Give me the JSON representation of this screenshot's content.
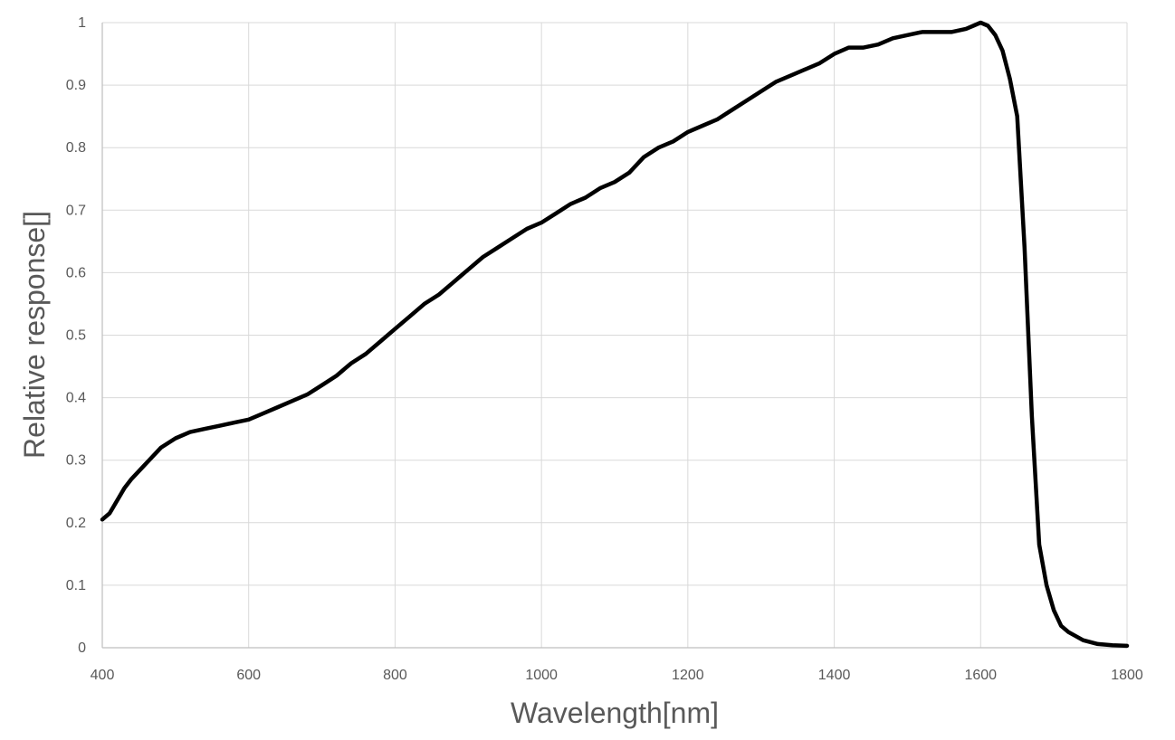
{
  "chart_data": {
    "type": "line",
    "title": "",
    "xlabel": "Wavelength[nm]",
    "ylabel": "Relative response[]",
    "xlim": [
      400,
      1800
    ],
    "ylim": [
      0,
      1
    ],
    "x_ticks": [
      "400",
      "600",
      "800",
      "1000",
      "1200",
      "1400",
      "1600",
      "1800"
    ],
    "y_ticks": [
      "0",
      "0.1",
      "0.2",
      "0.3",
      "0.4",
      "0.5",
      "0.6",
      "0.7",
      "0.8",
      "0.9",
      "1"
    ],
    "grid": true,
    "legend": "none",
    "colors": {
      "series": "#000000",
      "grid": "#d9d9d9",
      "text": "#595959"
    },
    "series": [
      {
        "x": [
          400,
          410,
          420,
          430,
          440,
          460,
          480,
          500,
          520,
          540,
          560,
          580,
          600,
          620,
          640,
          660,
          680,
          700,
          720,
          740,
          760,
          780,
          800,
          820,
          840,
          860,
          880,
          900,
          920,
          940,
          960,
          980,
          1000,
          1020,
          1040,
          1060,
          1080,
          1100,
          1120,
          1140,
          1160,
          1180,
          1200,
          1220,
          1240,
          1260,
          1280,
          1300,
          1320,
          1340,
          1360,
          1380,
          1400,
          1420,
          1440,
          1460,
          1480,
          1500,
          1520,
          1540,
          1560,
          1580,
          1590,
          1600,
          1610,
          1620,
          1630,
          1640,
          1650,
          1660,
          1670,
          1680,
          1690,
          1700,
          1710,
          1720,
          1740,
          1760,
          1780,
          1800
        ],
        "y": [
          0.205,
          0.215,
          0.235,
          0.255,
          0.27,
          0.295,
          0.32,
          0.335,
          0.345,
          0.35,
          0.355,
          0.36,
          0.365,
          0.375,
          0.385,
          0.395,
          0.405,
          0.42,
          0.435,
          0.455,
          0.47,
          0.49,
          0.51,
          0.53,
          0.55,
          0.565,
          0.585,
          0.605,
          0.625,
          0.64,
          0.655,
          0.67,
          0.68,
          0.695,
          0.71,
          0.72,
          0.735,
          0.745,
          0.76,
          0.785,
          0.8,
          0.81,
          0.825,
          0.835,
          0.845,
          0.86,
          0.875,
          0.89,
          0.905,
          0.915,
          0.925,
          0.935,
          0.95,
          0.96,
          0.96,
          0.965,
          0.975,
          0.98,
          0.985,
          0.985,
          0.985,
          0.99,
          0.995,
          1.0,
          0.995,
          0.98,
          0.955,
          0.91,
          0.85,
          0.64,
          0.37,
          0.165,
          0.1,
          0.06,
          0.035,
          0.025,
          0.012,
          0.006,
          0.004,
          0.003
        ]
      }
    ]
  }
}
